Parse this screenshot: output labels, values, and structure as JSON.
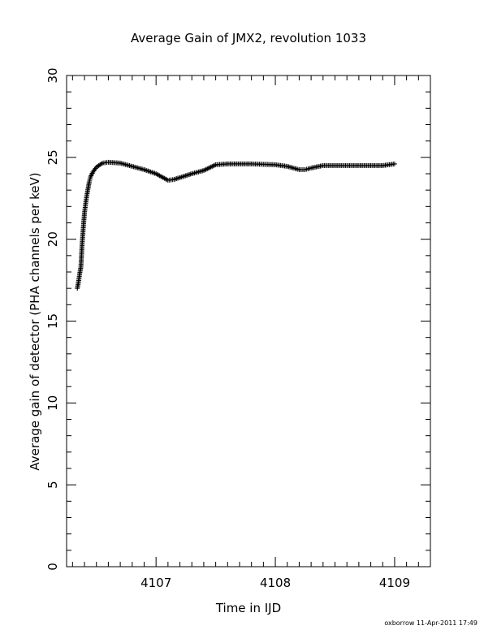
{
  "chart_data": {
    "type": "scatter",
    "title": "Average Gain of JMX2, revolution 1033",
    "xlabel": "Time in IJD",
    "ylabel": "Average gain of detector (PHA channels per keV)",
    "xlim": [
      4106.25,
      4109.3
    ],
    "ylim": [
      0,
      30
    ],
    "x_ticks": [
      4107,
      4108,
      4109
    ],
    "y_ticks": [
      0,
      5,
      10,
      15,
      20,
      25,
      30
    ],
    "marker": "plus",
    "color": "#000000",
    "grid": false,
    "footer": "oxborrow 11-Apr-2011 17:49",
    "x": [
      4106.34,
      4106.35,
      4106.36,
      4106.37,
      4106.38,
      4106.39,
      4106.4,
      4106.41,
      4106.42,
      4106.43,
      4106.44,
      4106.45,
      4106.47,
      4106.5,
      4106.55,
      4106.6,
      4106.7,
      4106.8,
      4106.9,
      4107.0,
      4107.1,
      4107.15,
      4107.3,
      4107.4,
      4107.5,
      4107.6,
      4107.8,
      4108.0,
      4108.1,
      4108.2,
      4108.25,
      4108.3,
      4108.4,
      4108.5,
      4108.7,
      4108.9,
      4109.0
    ],
    "y": [
      17.0,
      17.4,
      17.9,
      18.3,
      19.7,
      20.7,
      21.6,
      22.2,
      22.7,
      23.1,
      23.5,
      23.8,
      24.1,
      24.4,
      24.65,
      24.7,
      24.65,
      24.45,
      24.25,
      24.0,
      23.6,
      23.65,
      24.0,
      24.2,
      24.55,
      24.6,
      24.6,
      24.55,
      24.45,
      24.25,
      24.25,
      24.35,
      24.5,
      24.5,
      24.5,
      24.5,
      24.6
    ]
  }
}
